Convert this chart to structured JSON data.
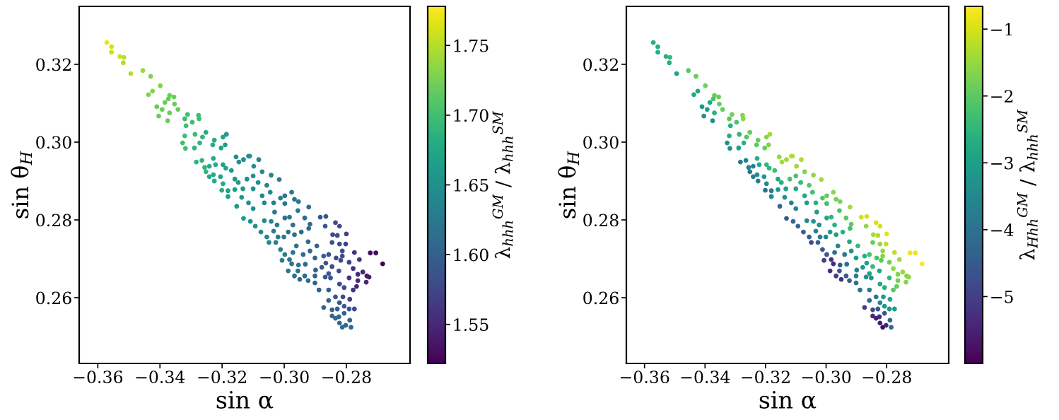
{
  "chart_data": [
    {
      "type": "scatter",
      "marker": "circle",
      "xlabel": "sin α",
      "ylabel": "sin θ$_{H}$",
      "clabel": "λ$_{hhh}$$^{GM}$ / λ$_{hhh}$$^{SM}$",
      "xlim": [
        -0.366,
        -0.2595
      ],
      "xticks": [
        {
          "value": -0.36,
          "label": "−0.36"
        },
        {
          "value": -0.34,
          "label": "−0.34"
        },
        {
          "value": -0.32,
          "label": "−0.32"
        },
        {
          "value": -0.3,
          "label": "−0.30"
        },
        {
          "value": -0.28,
          "label": "−0.28"
        }
      ],
      "ylim": [
        0.2431,
        0.3349
      ],
      "yticks": [
        0.26,
        0.28,
        {
          "value": 0.3,
          "label": "0.30"
        },
        0.32
      ],
      "clim": [
        1.522,
        1.778
      ],
      "cticks": [
        1.55,
        {
          "value": 1.6,
          "label": "1.60"
        },
        1.65,
        {
          "value": 1.7,
          "label": "1.70"
        },
        1.75
      ],
      "x": [
        -0.3571,
        -0.3556,
        -0.3556,
        -0.3529,
        -0.3516,
        -0.3518,
        -0.3494,
        -0.3455,
        -0.343,
        -0.3399,
        -0.3424,
        -0.3437,
        -0.3369,
        -0.3355,
        -0.3373,
        -0.3384,
        -0.3353,
        -0.341,
        -0.3393,
        -0.3342,
        -0.3369,
        -0.3404,
        -0.3375,
        -0.3311,
        -0.3276,
        -0.332,
        -0.3274,
        -0.3296,
        -0.3316,
        -0.3252,
        -0.3186,
        -0.332,
        -0.3287,
        -0.3263,
        -0.3225,
        -0.3197,
        -0.3327,
        -0.3272,
        -0.323,
        -0.319,
        -0.3203,
        -0.3318,
        -0.3289,
        -0.3155,
        -0.3146,
        -0.3115,
        -0.3228,
        -0.3283,
        -0.3265,
        -0.3221,
        -0.3241,
        -0.3197,
        -0.3256,
        -0.3188,
        -0.317,
        -0.3252,
        -0.3228,
        -0.3241,
        -0.3205,
        -0.3225,
        -0.3159,
        -0.3197,
        -0.3148,
        -0.312,
        -0.3181,
        -0.3201,
        -0.3159,
        -0.3133,
        -0.3181,
        -0.3137,
        -0.3131,
        -0.3111,
        -0.3082,
        -0.3098,
        -0.31,
        -0.3071,
        -0.3042,
        -0.3016,
        -0.3084,
        -0.3056,
        -0.3045,
        -0.31,
        -0.3071,
        -0.3115,
        -0.3153,
        -0.31,
        -0.3064,
        -0.3034,
        -0.3012,
        -0.2998,
        -0.2976,
        -0.2967,
        -0.2954,
        -0.2998,
        -0.2956,
        -0.2921,
        -0.3031,
        -0.2998,
        -0.2983,
        -0.3131,
        -0.3109,
        -0.3093,
        -0.3064,
        -0.3042,
        -0.3023,
        -0.3034,
        -0.3075,
        -0.3056,
        -0.302,
        -0.3001,
        -0.2987,
        -0.2967,
        -0.2945,
        -0.2972,
        -0.2934,
        -0.2917,
        -0.2921,
        -0.2884,
        -0.2866,
        -0.2868,
        -0.2835,
        -0.2822,
        -0.2844,
        -0.2829,
        -0.28,
        -0.2923,
        -0.2895,
        -0.2846,
        -0.2822,
        -0.2802,
        -0.3049,
        -0.3027,
        -0.3012,
        -0.2961,
        -0.2972,
        -0.2939,
        -0.2917,
        -0.2998,
        -0.2983,
        -0.3007,
        -0.2976,
        -0.2954,
        -0.2932,
        -0.2901,
        -0.2873,
        -0.2857,
        -0.2866,
        -0.2833,
        -0.2813,
        -0.2813,
        -0.2818,
        -0.2791,
        -0.2774,
        -0.2758,
        -0.2723,
        -0.2705,
        -0.2683,
        -0.2778,
        -0.2763,
        -0.2747,
        -0.2734,
        -0.2727,
        -0.2736,
        -0.2763,
        -0.2767,
        -0.2778,
        -0.2791,
        -0.2824,
        -0.2846,
        -0.2857,
        -0.2851,
        -0.2868,
        -0.2879,
        -0.2899,
        -0.2901,
        -0.2923,
        -0.2934,
        -0.295,
        -0.2967,
        -0.2987,
        -0.2956,
        -0.2901,
        -0.2888,
        -0.2857,
        -0.2822,
        -0.2807,
        -0.2811,
        -0.2807,
        -0.2857,
        -0.2835,
        -0.2822,
        -0.2873,
        -0.2846,
        -0.2829,
        -0.2791,
        -0.2774,
        -0.2789,
        -0.2807,
        -0.2846,
        -0.2835,
        -0.2822,
        -0.2789,
        -0.2785,
        -0.2813,
        -0.2802,
        -0.2824
      ],
      "values": [
        0.3256,
        0.3245,
        0.3231,
        0.322,
        0.3218,
        0.3204,
        0.3176,
        0.3184,
        0.3169,
        0.3145,
        0.3131,
        0.3122,
        0.312,
        0.3116,
        0.3111,
        0.3102,
        0.3098,
        0.3091,
        0.3084,
        0.3084,
        0.3075,
        0.3067,
        0.3055,
        0.3071,
        0.3069,
        0.306,
        0.306,
        0.3051,
        0.3042,
        0.3025,
        0.302,
        0.3016,
        0.302,
        0.3013,
        0.3005,
        0.3013,
        0.2998,
        0.2998,
        0.2993,
        0.2993,
        0.2985,
        0.2984,
        0.2985,
        0.2962,
        0.2949,
        0.2964,
        0.2958,
        0.2949,
        0.2953,
        0.2942,
        0.2938,
        0.2942,
        0.2935,
        0.2933,
        0.2927,
        0.2924,
        0.2916,
        0.2911,
        0.2911,
        0.29,
        0.2905,
        0.2893,
        0.2896,
        0.2905,
        0.2875,
        0.2876,
        0.2878,
        0.288,
        0.286,
        0.2858,
        0.2955,
        0.2964,
        0.2955,
        0.2938,
        0.2913,
        0.2924,
        0.2915,
        0.2904,
        0.2896,
        0.2889,
        0.2871,
        0.288,
        0.2862,
        0.2844,
        0.2835,
        0.2829,
        0.2844,
        0.2844,
        0.2856,
        0.2862,
        0.2871,
        0.2853,
        0.2847,
        0.2842,
        0.2824,
        0.2833,
        0.282,
        0.2805,
        0.2807,
        0.2804,
        0.2796,
        0.2784,
        0.2798,
        0.2796,
        0.2787,
        0.2771,
        0.2769,
        0.2756,
        0.2756,
        0.2756,
        0.2769,
        0.2762,
        0.2769,
        0.2787,
        0.2805,
        0.2789,
        0.2778,
        0.2807,
        0.2809,
        0.2784,
        0.2793,
        0.2784,
        0.2762,
        0.276,
        0.2764,
        0.2744,
        0.2733,
        0.2742,
        0.2738,
        0.2738,
        0.2742,
        0.2742,
        0.2724,
        0.2733,
        0.2716,
        0.2711,
        0.272,
        0.2711,
        0.2698,
        0.2696,
        0.2687,
        0.2684,
        0.2686,
        0.2702,
        0.2707,
        0.2711,
        0.2689,
        0.2702,
        0.2707,
        0.272,
        0.2696,
        0.2691,
        0.2716,
        0.2698,
        0.2715,
        0.2715,
        0.2687,
        0.2675,
        0.266,
        0.2666,
        0.2656,
        0.2653,
        0.264,
        0.2644,
        0.2629,
        0.262,
        0.2651,
        0.2669,
        0.268,
        0.2662,
        0.2651,
        0.2653,
        0.2678,
        0.2671,
        0.2656,
        0.2644,
        0.2656,
        0.2647,
        0.2656,
        0.2669,
        0.2669,
        0.2638,
        0.262,
        0.262,
        0.2635,
        0.2626,
        0.2602,
        0.2578,
        0.2593,
        0.2602,
        0.2587,
        0.2575,
        0.2569,
        0.2571,
        0.2571,
        0.2571,
        0.2596,
        0.256,
        0.2553,
        0.2547,
        0.2535,
        0.2542,
        0.2524,
        0.2524,
        0.2529,
        0.2551
      ],
      "cvalues": [
        1.77,
        1.76,
        1.76,
        1.76,
        1.75,
        1.75,
        1.75,
        1.74,
        1.73,
        1.73,
        1.73,
        1.73,
        1.72,
        1.72,
        1.72,
        1.72,
        1.72,
        1.72,
        1.72,
        1.72,
        1.72,
        1.72,
        1.72,
        1.7,
        1.7,
        1.7,
        1.7,
        1.7,
        1.7,
        1.68,
        1.66,
        1.7,
        1.7,
        1.69,
        1.68,
        1.67,
        1.7,
        1.69,
        1.68,
        1.67,
        1.67,
        1.7,
        1.69,
        1.65,
        1.65,
        1.65,
        1.68,
        1.69,
        1.69,
        1.68,
        1.68,
        1.67,
        1.69,
        1.67,
        1.66,
        1.69,
        1.68,
        1.68,
        1.67,
        1.68,
        1.66,
        1.68,
        1.66,
        1.65,
        1.67,
        1.68,
        1.66,
        1.66,
        1.67,
        1.66,
        1.65,
        1.65,
        1.64,
        1.65,
        1.65,
        1.64,
        1.64,
        1.63,
        1.65,
        1.64,
        1.64,
        1.65,
        1.64,
        1.65,
        1.66,
        1.65,
        1.64,
        1.63,
        1.63,
        1.62,
        1.62,
        1.62,
        1.62,
        1.62,
        1.62,
        1.61,
        1.63,
        1.62,
        1.62,
        1.66,
        1.65,
        1.65,
        1.64,
        1.64,
        1.63,
        1.63,
        1.64,
        1.64,
        1.63,
        1.63,
        1.62,
        1.62,
        1.61,
        1.62,
        1.61,
        1.61,
        1.61,
        1.59,
        1.59,
        1.59,
        1.58,
        1.58,
        1.58,
        1.58,
        1.57,
        1.61,
        1.6,
        1.59,
        1.58,
        1.57,
        1.64,
        1.63,
        1.63,
        1.62,
        1.62,
        1.61,
        1.61,
        1.63,
        1.62,
        1.63,
        1.62,
        1.62,
        1.61,
        1.6,
        1.6,
        1.59,
        1.59,
        1.58,
        1.58,
        1.58,
        1.58,
        1.57,
        1.56,
        1.56,
        1.53,
        1.53,
        1.52,
        1.56,
        1.55,
        1.55,
        1.54,
        1.54,
        1.55,
        1.55,
        1.55,
        1.56,
        1.56,
        1.58,
        1.58,
        1.59,
        1.59,
        1.59,
        1.59,
        1.6,
        1.6,
        1.61,
        1.61,
        1.61,
        1.62,
        1.62,
        1.62,
        1.6,
        1.6,
        1.6,
        1.58,
        1.58,
        1.58,
        1.59,
        1.6,
        1.59,
        1.59,
        1.6,
        1.6,
        1.6,
        1.59,
        1.58,
        1.57,
        1.6,
        1.61,
        1.61,
        1.61,
        1.6,
        1.61,
        1.61,
        1.61,
        1.61
      ]
    },
    {
      "type": "scatter",
      "marker": "circle",
      "xlabel": "sin α",
      "ylabel": "sin θ$_{H}$",
      "clabel": "λ$_{Hhh}$$^{GM}$ / λ$_{hhh}$$^{SM}$",
      "xlim": [
        -0.366,
        -0.2595
      ],
      "xticks": [
        {
          "value": -0.36,
          "label": "−0.36"
        },
        {
          "value": -0.34,
          "label": "−0.34"
        },
        {
          "value": -0.32,
          "label": "−0.32"
        },
        {
          "value": -0.3,
          "label": "−0.30"
        },
        {
          "value": -0.28,
          "label": "−0.28"
        }
      ],
      "ylim": [
        0.2431,
        0.3349
      ],
      "yticks": [
        0.26,
        0.28,
        {
          "value": 0.3,
          "label": "0.30"
        },
        0.32
      ],
      "clim": [
        -6.0,
        -0.66
      ],
      "cticks": [
        {
          "value": -5,
          "label": "−5"
        },
        {
          "value": -4,
          "label": "−4"
        },
        {
          "value": -3,
          "label": "−3"
        },
        {
          "value": -2,
          "label": "−2"
        },
        {
          "value": -1,
          "label": "−1"
        }
      ],
      "x": [
        -0.3571,
        -0.3556,
        -0.3556,
        -0.3529,
        -0.3516,
        -0.3518,
        -0.3494,
        -0.3455,
        -0.343,
        -0.3399,
        -0.3424,
        -0.3437,
        -0.3369,
        -0.3355,
        -0.3373,
        -0.3384,
        -0.3353,
        -0.341,
        -0.3393,
        -0.3342,
        -0.3369,
        -0.3404,
        -0.3375,
        -0.3311,
        -0.3276,
        -0.332,
        -0.3274,
        -0.3296,
        -0.3316,
        -0.3252,
        -0.3186,
        -0.332,
        -0.3287,
        -0.3263,
        -0.3225,
        -0.3197,
        -0.3327,
        -0.3272,
        -0.323,
        -0.319,
        -0.3203,
        -0.3318,
        -0.3289,
        -0.3155,
        -0.3146,
        -0.3115,
        -0.3228,
        -0.3283,
        -0.3265,
        -0.3221,
        -0.3241,
        -0.3197,
        -0.3256,
        -0.3188,
        -0.317,
        -0.3252,
        -0.3228,
        -0.3241,
        -0.3205,
        -0.3225,
        -0.3159,
        -0.3197,
        -0.3148,
        -0.312,
        -0.3181,
        -0.3201,
        -0.3159,
        -0.3133,
        -0.3181,
        -0.3137,
        -0.3131,
        -0.3111,
        -0.3082,
        -0.3098,
        -0.31,
        -0.3071,
        -0.3042,
        -0.3016,
        -0.3084,
        -0.3056,
        -0.3045,
        -0.31,
        -0.3071,
        -0.3115,
        -0.3153,
        -0.31,
        -0.3064,
        -0.3034,
        -0.3012,
        -0.2998,
        -0.2976,
        -0.2967,
        -0.2954,
        -0.2998,
        -0.2956,
        -0.2921,
        -0.3031,
        -0.2998,
        -0.2983,
        -0.3131,
        -0.3109,
        -0.3093,
        -0.3064,
        -0.3042,
        -0.3023,
        -0.3034,
        -0.3075,
        -0.3056,
        -0.302,
        -0.3001,
        -0.2987,
        -0.2967,
        -0.2945,
        -0.2972,
        -0.2934,
        -0.2917,
        -0.2921,
        -0.2884,
        -0.2866,
        -0.2868,
        -0.2835,
        -0.2822,
        -0.2844,
        -0.2829,
        -0.28,
        -0.2923,
        -0.2895,
        -0.2846,
        -0.2822,
        -0.2802,
        -0.3049,
        -0.3027,
        -0.3012,
        -0.2961,
        -0.2972,
        -0.2939,
        -0.2917,
        -0.2998,
        -0.2983,
        -0.3007,
        -0.2976,
        -0.2954,
        -0.2932,
        -0.2901,
        -0.2873,
        -0.2857,
        -0.2866,
        -0.2833,
        -0.2813,
        -0.2813,
        -0.2818,
        -0.2791,
        -0.2774,
        -0.2758,
        -0.2723,
        -0.2705,
        -0.2683,
        -0.2778,
        -0.2763,
        -0.2747,
        -0.2734,
        -0.2727,
        -0.2736,
        -0.2763,
        -0.2767,
        -0.2778,
        -0.2791,
        -0.2824,
        -0.2846,
        -0.2857,
        -0.2851,
        -0.2868,
        -0.2879,
        -0.2899,
        -0.2901,
        -0.2923,
        -0.2934,
        -0.295,
        -0.2967,
        -0.2987,
        -0.2956,
        -0.2901,
        -0.2888,
        -0.2857,
        -0.2822,
        -0.2807,
        -0.2811,
        -0.2807,
        -0.2857,
        -0.2835,
        -0.2822,
        -0.2873,
        -0.2846,
        -0.2829,
        -0.2791,
        -0.2774,
        -0.2789,
        -0.2807,
        -0.2846,
        -0.2835,
        -0.2822,
        -0.2789,
        -0.2785,
        -0.2813,
        -0.2802,
        -0.2824
      ],
      "values": [
        0.3256,
        0.3245,
        0.3231,
        0.322,
        0.3218,
        0.3204,
        0.3176,
        0.3184,
        0.3169,
        0.3145,
        0.3131,
        0.3122,
        0.312,
        0.3116,
        0.3111,
        0.3102,
        0.3098,
        0.3091,
        0.3084,
        0.3084,
        0.3075,
        0.3067,
        0.3055,
        0.3071,
        0.3069,
        0.306,
        0.306,
        0.3051,
        0.3042,
        0.3025,
        0.302,
        0.3016,
        0.302,
        0.3013,
        0.3005,
        0.3013,
        0.2998,
        0.2998,
        0.2993,
        0.2993,
        0.2985,
        0.2984,
        0.2985,
        0.2962,
        0.2949,
        0.2964,
        0.2958,
        0.2949,
        0.2953,
        0.2942,
        0.2938,
        0.2942,
        0.2935,
        0.2933,
        0.2927,
        0.2924,
        0.2916,
        0.2911,
        0.2911,
        0.29,
        0.2905,
        0.2893,
        0.2896,
        0.2905,
        0.2875,
        0.2876,
        0.2878,
        0.288,
        0.286,
        0.2858,
        0.2955,
        0.2964,
        0.2955,
        0.2938,
        0.2913,
        0.2924,
        0.2915,
        0.2904,
        0.2896,
        0.2889,
        0.2871,
        0.288,
        0.2862,
        0.2844,
        0.2835,
        0.2829,
        0.2844,
        0.2844,
        0.2856,
        0.2862,
        0.2871,
        0.2853,
        0.2847,
        0.2842,
        0.2824,
        0.2833,
        0.282,
        0.2805,
        0.2807,
        0.2804,
        0.2796,
        0.2784,
        0.2798,
        0.2796,
        0.2787,
        0.2771,
        0.2769,
        0.2756,
        0.2756,
        0.2756,
        0.2769,
        0.2762,
        0.2769,
        0.2787,
        0.2805,
        0.2789,
        0.2778,
        0.2807,
        0.2809,
        0.2784,
        0.2793,
        0.2784,
        0.2762,
        0.276,
        0.2764,
        0.2744,
        0.2733,
        0.2742,
        0.2738,
        0.2738,
        0.2742,
        0.2742,
        0.2724,
        0.2733,
        0.2716,
        0.2711,
        0.272,
        0.2711,
        0.2698,
        0.2696,
        0.2687,
        0.2684,
        0.2686,
        0.2702,
        0.2707,
        0.2711,
        0.2689,
        0.2702,
        0.2707,
        0.272,
        0.2696,
        0.2691,
        0.2716,
        0.2698,
        0.2715,
        0.2715,
        0.2687,
        0.2675,
        0.266,
        0.2666,
        0.2656,
        0.2653,
        0.264,
        0.2644,
        0.2629,
        0.262,
        0.2651,
        0.2669,
        0.268,
        0.2662,
        0.2651,
        0.2653,
        0.2678,
        0.2671,
        0.2656,
        0.2644,
        0.2656,
        0.2647,
        0.2656,
        0.2669,
        0.2669,
        0.2638,
        0.262,
        0.262,
        0.2635,
        0.2626,
        0.2602,
        0.2578,
        0.2593,
        0.2602,
        0.2587,
        0.2575,
        0.2569,
        0.2571,
        0.2571,
        0.2571,
        0.2596,
        0.256,
        0.2553,
        0.2547,
        0.2535,
        0.2542,
        0.2524,
        0.2524,
        0.2529,
        0.2551
      ],
      "cvalues": [
        -2.6,
        -2.7,
        -2.7,
        -2.6,
        -2.4,
        -2.7,
        -2.9,
        -2.0,
        -1.9,
        -1.8,
        -2.8,
        -2.8,
        -1.9,
        -1.9,
        -2.2,
        -2.8,
        -1.9,
        -3.2,
        -3.0,
        -1.9,
        -2.6,
        -3.3,
        -3.3,
        -1.8,
        -1.6,
        -2.0,
        -1.6,
        -2.2,
        -2.6,
        -1.9,
        -1.4,
        -2.6,
        -2.5,
        -2.1,
        -1.9,
        -1.6,
        -3.3,
        -2.6,
        -2.0,
        -1.7,
        -1.9,
        -3.4,
        -3.0,
        -1.5,
        -1.4,
        -1.3,
        -2.6,
        -3.8,
        -3.7,
        -2.8,
        -3.6,
        -2.4,
        -3.8,
        -2.5,
        -2.3,
        -3.8,
        -3.5,
        -3.8,
        -3.2,
        -3.7,
        -2.8,
        -3.5,
        -2.7,
        -2.2,
        -3.8,
        -4.0,
        -3.3,
        -2.9,
        -3.5,
        -3.3,
        -1.4,
        -1.3,
        -1.3,
        -1.4,
        -2.2,
        -1.7,
        -1.5,
        -1.4,
        -2.4,
        -2.1,
        -2.3,
        -2.8,
        -2.8,
        -3.6,
        -4.2,
        -3.6,
        -3.0,
        -2.6,
        -2.1,
        -1.9,
        -1.6,
        -1.8,
        -1.7,
        -2.3,
        -2.2,
        -1.4,
        -3.0,
        -2.8,
        -2.5,
        -4.5,
        -4.2,
        -4.3,
        -3.5,
        -3.2,
        -3.3,
        -3.7,
        -4.3,
        -4.4,
        -3.8,
        -3.5,
        -3.1,
        -3.0,
        -2.6,
        -2.6,
        -2.0,
        -2.0,
        -2.3,
        -1.0,
        -1.0,
        -1.5,
        -1.0,
        -1.0,
        -1.4,
        -1.3,
        -0.9,
        -2.8,
        -2.4,
        -1.9,
        -1.5,
        -1.2,
        -4.8,
        -4.4,
        -4.5,
        -3.6,
        -4.0,
        -3.8,
        -3.2,
        -4.5,
        -5.2,
        -5.0,
        -5.3,
        -4.6,
        -4.0,
        -3.1,
        -2.6,
        -2.2,
        -3.0,
        -2.2,
        -1.6,
        -1.5,
        -2.0,
        -1.8,
        -1.2,
        -1.4,
        -0.8,
        -0.8,
        -0.7,
        -1.5,
        -1.7,
        -1.5,
        -1.6,
        -1.6,
        -1.6,
        -1.8,
        -1.9,
        -2.0,
        -2.4,
        -2.8,
        -2.4,
        -3.0,
        -3.2,
        -3.4,
        -3.2,
        -3.6,
        -3.8,
        -4.4,
        -4.5,
        -5.3,
        -5.0,
        -5.3,
        -4.6,
        -4.0,
        -3.9,
        -3.6,
        -2.8,
        -2.6,
        -3.0,
        -3.2,
        -4.2,
        -3.8,
        -3.6,
        -5.0,
        -4.8,
        -4.6,
        -3.2,
        -3.0,
        -2.8,
        -4.6,
        -5.4,
        -5.5,
        -5.6,
        -4.2,
        -4.2,
        -5.8,
        -5.4,
        -5.3
      ]
    }
  ]
}
